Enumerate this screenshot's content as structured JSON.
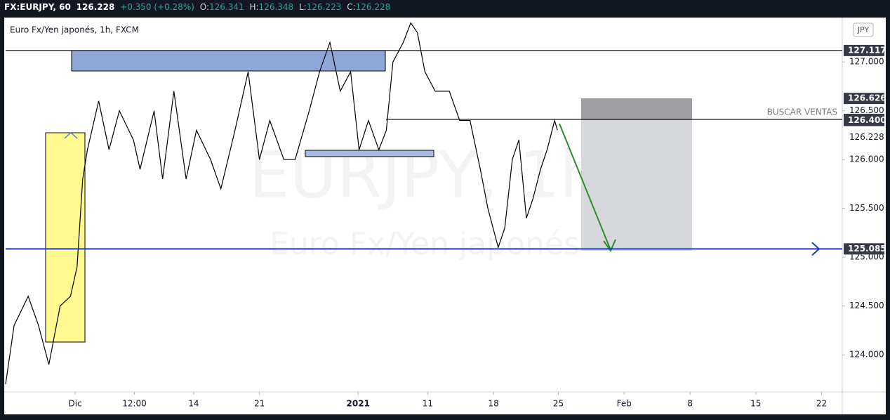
{
  "header": {
    "symbol": "FX:EURJPY, 60",
    "price": "126.228",
    "change": "+0.350 (+0.28%)",
    "o_label": "O:",
    "o": "126.341",
    "h_label": "H:",
    "h": "126.348",
    "l_label": "L:",
    "l": "126.223",
    "c_label": "C:",
    "c": "126.228"
  },
  "chart_data": {
    "type": "line",
    "watermark": "EURJPY, 1h",
    "watermark_sub": "Euro Fx/Yen japonés",
    "currency_button": "JPY",
    "annotation": "BUSCAR VENTAS",
    "x": [
      -7.4,
      -6.5,
      -5.0,
      -3.9,
      -2.8,
      -1.6,
      -0.5,
      0.2,
      0.8,
      1.3,
      2.5,
      3.6,
      4.7,
      6.2,
      6.9,
      8.4,
      9.3,
      10.5,
      11.8,
      12.9,
      14.4,
      15.5,
      17.0,
      18.4,
      19.6,
      20.7,
      22.2,
      23.4,
      24.9,
      26.0,
      27.1,
      28.2,
      29.3,
      30.2,
      31.2,
      32.3,
      33.1,
      33.8,
      34.9,
      35.7,
      36.4,
      37.2,
      38.3,
      39.8,
      40.9,
      42.0,
      43.1,
      43.9,
      45.0,
      45.7,
      46.5,
      47.2,
      48.0,
      48.7,
      49.5,
      50.2,
      51.0,
      51.3
    ],
    "series": [
      {
        "name": "Euro Fx/Yen japonés, 1h, FXCM",
        "color": "#000000",
        "values": [
          123.7,
          124.3,
          124.6,
          124.3,
          123.9,
          124.5,
          124.6,
          124.9,
          125.8,
          126.1,
          126.6,
          126.1,
          126.5,
          126.2,
          125.9,
          126.5,
          125.8,
          126.7,
          125.8,
          126.3,
          126.0,
          125.7,
          126.3,
          126.9,
          126.0,
          126.4,
          126.0,
          126.0,
          126.5,
          126.9,
          127.2,
          126.7,
          126.9,
          126.1,
          126.4,
          126.1,
          126.3,
          127.0,
          127.2,
          127.4,
          127.3,
          126.9,
          126.7,
          126.7,
          126.4,
          126.4,
          125.9,
          125.5,
          125.1,
          125.3,
          126.0,
          126.2,
          125.4,
          125.6,
          125.9,
          126.1,
          126.4,
          126.3
        ]
      }
    ],
    "xlim": [
      -7.4,
      81.6
    ],
    "xticks": [
      {
        "value": 0,
        "label": "Dic"
      },
      {
        "value": 6.3,
        "label": "12:00"
      },
      {
        "value": 12.6,
        "label": "14"
      },
      {
        "value": 19.6,
        "label": "21"
      },
      {
        "value": 30.1,
        "label": "2021"
      },
      {
        "value": 37.5,
        "label": "11"
      },
      {
        "value": 44.5,
        "label": "18"
      },
      {
        "value": 51.4,
        "label": "25"
      },
      {
        "value": 58.4,
        "label": "Feb"
      },
      {
        "value": 65.4,
        "label": "8"
      },
      {
        "value": 72.4,
        "label": "15"
      },
      {
        "value": 79.4,
        "label": "22"
      }
    ],
    "ylim": [
      123.62,
      127.44
    ],
    "yticks": [
      {
        "value": 124,
        "label": "124.000"
      },
      {
        "value": 124.5,
        "label": "124.500"
      },
      {
        "value": 125,
        "label": "125.000"
      },
      {
        "value": 125.5,
        "label": "125.500"
      },
      {
        "value": 126,
        "label": "126.000"
      },
      {
        "value": 126.5,
        "label": "126.500"
      },
      {
        "value": 127,
        "label": "127.000"
      }
    ],
    "hlines": [
      {
        "value": 127.117,
        "color": "#131722"
      },
      {
        "value": 126.411,
        "color": "#131722"
      },
      {
        "value": 125.085,
        "color": "#1e3ad6"
      }
    ],
    "price_labels": [
      126.626,
      {
        "value": 126.4,
        "label": "126.400"
      }
    ],
    "last_price": 126.228
  }
}
